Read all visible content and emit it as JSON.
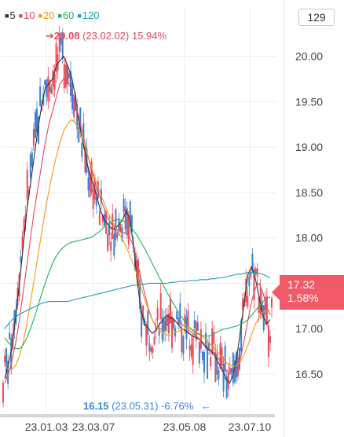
{
  "legend": {
    "items": [
      {
        "label": "5",
        "color": "#333333"
      },
      {
        "label": "10",
        "color": "#e8475f"
      },
      {
        "label": "20",
        "color": "#f39c12"
      },
      {
        "label": "60",
        "color": "#27ae60"
      },
      {
        "label": "120",
        "color": "#1aa3b5"
      }
    ]
  },
  "badge": "129",
  "current_price": {
    "value": "17.32",
    "change": "1.58%"
  },
  "high_marker": {
    "arrow": "➔",
    "price": "20.08",
    "date": "(23.02.02)",
    "pct": "15.94%",
    "color": "#e8475f"
  },
  "low_marker": {
    "price": "16.15",
    "date": "(23.05.31)",
    "pct": "-6.76%",
    "arrow": "←",
    "color": "#3d85d8"
  },
  "chart_data": {
    "type": "candlestick",
    "y_axis": {
      "ticks": [
        "20.00",
        "19.50",
        "19.00",
        "18.50",
        "18.00",
        "17.50",
        "17.00",
        "16.50"
      ],
      "range": [
        16.05,
        20.55
      ]
    },
    "x_axis": {
      "ticks": [
        "23.01.03",
        "23.03.07",
        "23.05.08",
        "23.07.10"
      ]
    },
    "series": [
      {
        "name": "5",
        "values": [
          16.45,
          16.6,
          16.8,
          17.15,
          17.5,
          17.9,
          18.3,
          18.6,
          18.9,
          19.2,
          19.45,
          19.65,
          19.7,
          19.75,
          19.9,
          19.95,
          20.0,
          19.9,
          19.8,
          19.6,
          19.3,
          19.1,
          18.9,
          18.7,
          18.6,
          18.45,
          18.3,
          18.2,
          18.15,
          18.1,
          18.1,
          18.15,
          18.2,
          18.3,
          18.2,
          17.9,
          17.5,
          17.2,
          17.05,
          17.0,
          16.95,
          16.98,
          17.05,
          17.1,
          17.15,
          17.12,
          17.1,
          17.05,
          17.0,
          16.98,
          16.95,
          16.92,
          16.9,
          16.88,
          16.82,
          16.78,
          16.75,
          16.7,
          16.62,
          16.55,
          16.45,
          16.4,
          16.5,
          16.7,
          17.0,
          17.3,
          17.6,
          17.68,
          17.55,
          17.35,
          17.15,
          17.05,
          17.1
        ]
      },
      {
        "name": "10",
        "values": [
          16.4,
          16.5,
          16.65,
          16.85,
          17.1,
          17.4,
          17.7,
          18.0,
          18.3,
          18.55,
          18.8,
          19.05,
          19.25,
          19.4,
          19.55,
          19.7,
          19.75,
          19.72,
          19.65,
          19.52,
          19.35,
          19.18,
          19.0,
          18.83,
          18.68,
          18.55,
          18.43,
          18.32,
          18.22,
          18.15,
          18.11,
          18.08,
          18.06,
          18.05,
          18.0,
          17.9,
          17.73,
          17.55,
          17.38,
          17.22,
          17.1,
          17.02,
          16.99,
          17.01,
          17.04,
          17.07,
          17.08,
          17.07,
          17.05,
          17.02,
          16.98,
          16.95,
          16.92,
          16.88,
          16.84,
          16.8,
          16.76,
          16.72,
          16.67,
          16.61,
          16.55,
          16.5,
          16.5,
          16.55,
          16.68,
          16.88,
          17.1,
          17.3,
          17.45,
          17.5,
          17.4,
          17.25,
          17.15
        ]
      },
      {
        "name": "20",
        "values": [
          16.6,
          16.55,
          16.55,
          16.6,
          16.7,
          16.85,
          17.05,
          17.3,
          17.55,
          17.8,
          18.05,
          18.3,
          18.52,
          18.72,
          18.9,
          19.05,
          19.18,
          19.25,
          19.3,
          19.28,
          19.2,
          19.1,
          18.98,
          18.85,
          18.72,
          18.6,
          18.48,
          18.38,
          18.28,
          18.2,
          18.12,
          18.05,
          17.98,
          17.9,
          17.8,
          17.7,
          17.58,
          17.45,
          17.32,
          17.2,
          17.1,
          17.03,
          16.98,
          16.95,
          16.93,
          16.93,
          16.95,
          16.97,
          16.99,
          17.0,
          17.0,
          16.99,
          16.97,
          16.94,
          16.9,
          16.86,
          16.82,
          16.78,
          16.73,
          16.68,
          16.63,
          16.6,
          16.58,
          16.6,
          16.64,
          16.72,
          16.82,
          16.94,
          17.05,
          17.13,
          17.18,
          17.2,
          17.2
        ]
      },
      {
        "name": "60",
        "values": [
          16.9,
          16.85,
          16.8,
          16.78,
          16.78,
          16.82,
          16.9,
          17.0,
          17.12,
          17.25,
          17.38,
          17.5,
          17.62,
          17.72,
          17.8,
          17.86,
          17.9,
          17.93,
          17.95,
          17.96,
          17.97,
          17.98,
          17.99,
          18.0,
          18.02,
          18.05,
          18.08,
          18.12,
          18.15,
          18.18,
          18.2,
          18.2,
          18.19,
          18.17,
          18.13,
          18.08,
          18.02,
          17.95,
          17.88,
          17.8,
          17.72,
          17.64,
          17.56,
          17.48,
          17.4,
          17.33,
          17.26,
          17.19,
          17.13,
          17.07,
          17.02,
          16.98,
          16.95,
          16.93,
          16.92,
          16.92,
          16.93,
          16.95,
          16.97,
          16.99,
          17.0,
          17.01,
          17.02,
          17.03,
          17.05,
          17.07,
          17.1,
          17.15,
          17.2,
          17.25,
          17.3,
          17.33,
          17.35
        ]
      },
      {
        "name": "120",
        "values": [
          17.0,
          17.05,
          17.1,
          17.13,
          17.16,
          17.18,
          17.2,
          17.22,
          17.24,
          17.26,
          17.28,
          17.29,
          17.3,
          17.3,
          17.3,
          17.3,
          17.3,
          17.3,
          17.31,
          17.32,
          17.33,
          17.34,
          17.35,
          17.36,
          17.37,
          17.38,
          17.39,
          17.4,
          17.41,
          17.42,
          17.43,
          17.44,
          17.45,
          17.46,
          17.47,
          17.48,
          17.48,
          17.49,
          17.49,
          17.5,
          17.5,
          17.5,
          17.5,
          17.5,
          17.5,
          17.51,
          17.51,
          17.52,
          17.52,
          17.52,
          17.53,
          17.53,
          17.53,
          17.54,
          17.54,
          17.54,
          17.55,
          17.55,
          17.56,
          17.56,
          17.57,
          17.58,
          17.59,
          17.6,
          17.6,
          17.61,
          17.62,
          17.62,
          17.62,
          17.61,
          17.6,
          17.58,
          17.56
        ]
      }
    ]
  }
}
